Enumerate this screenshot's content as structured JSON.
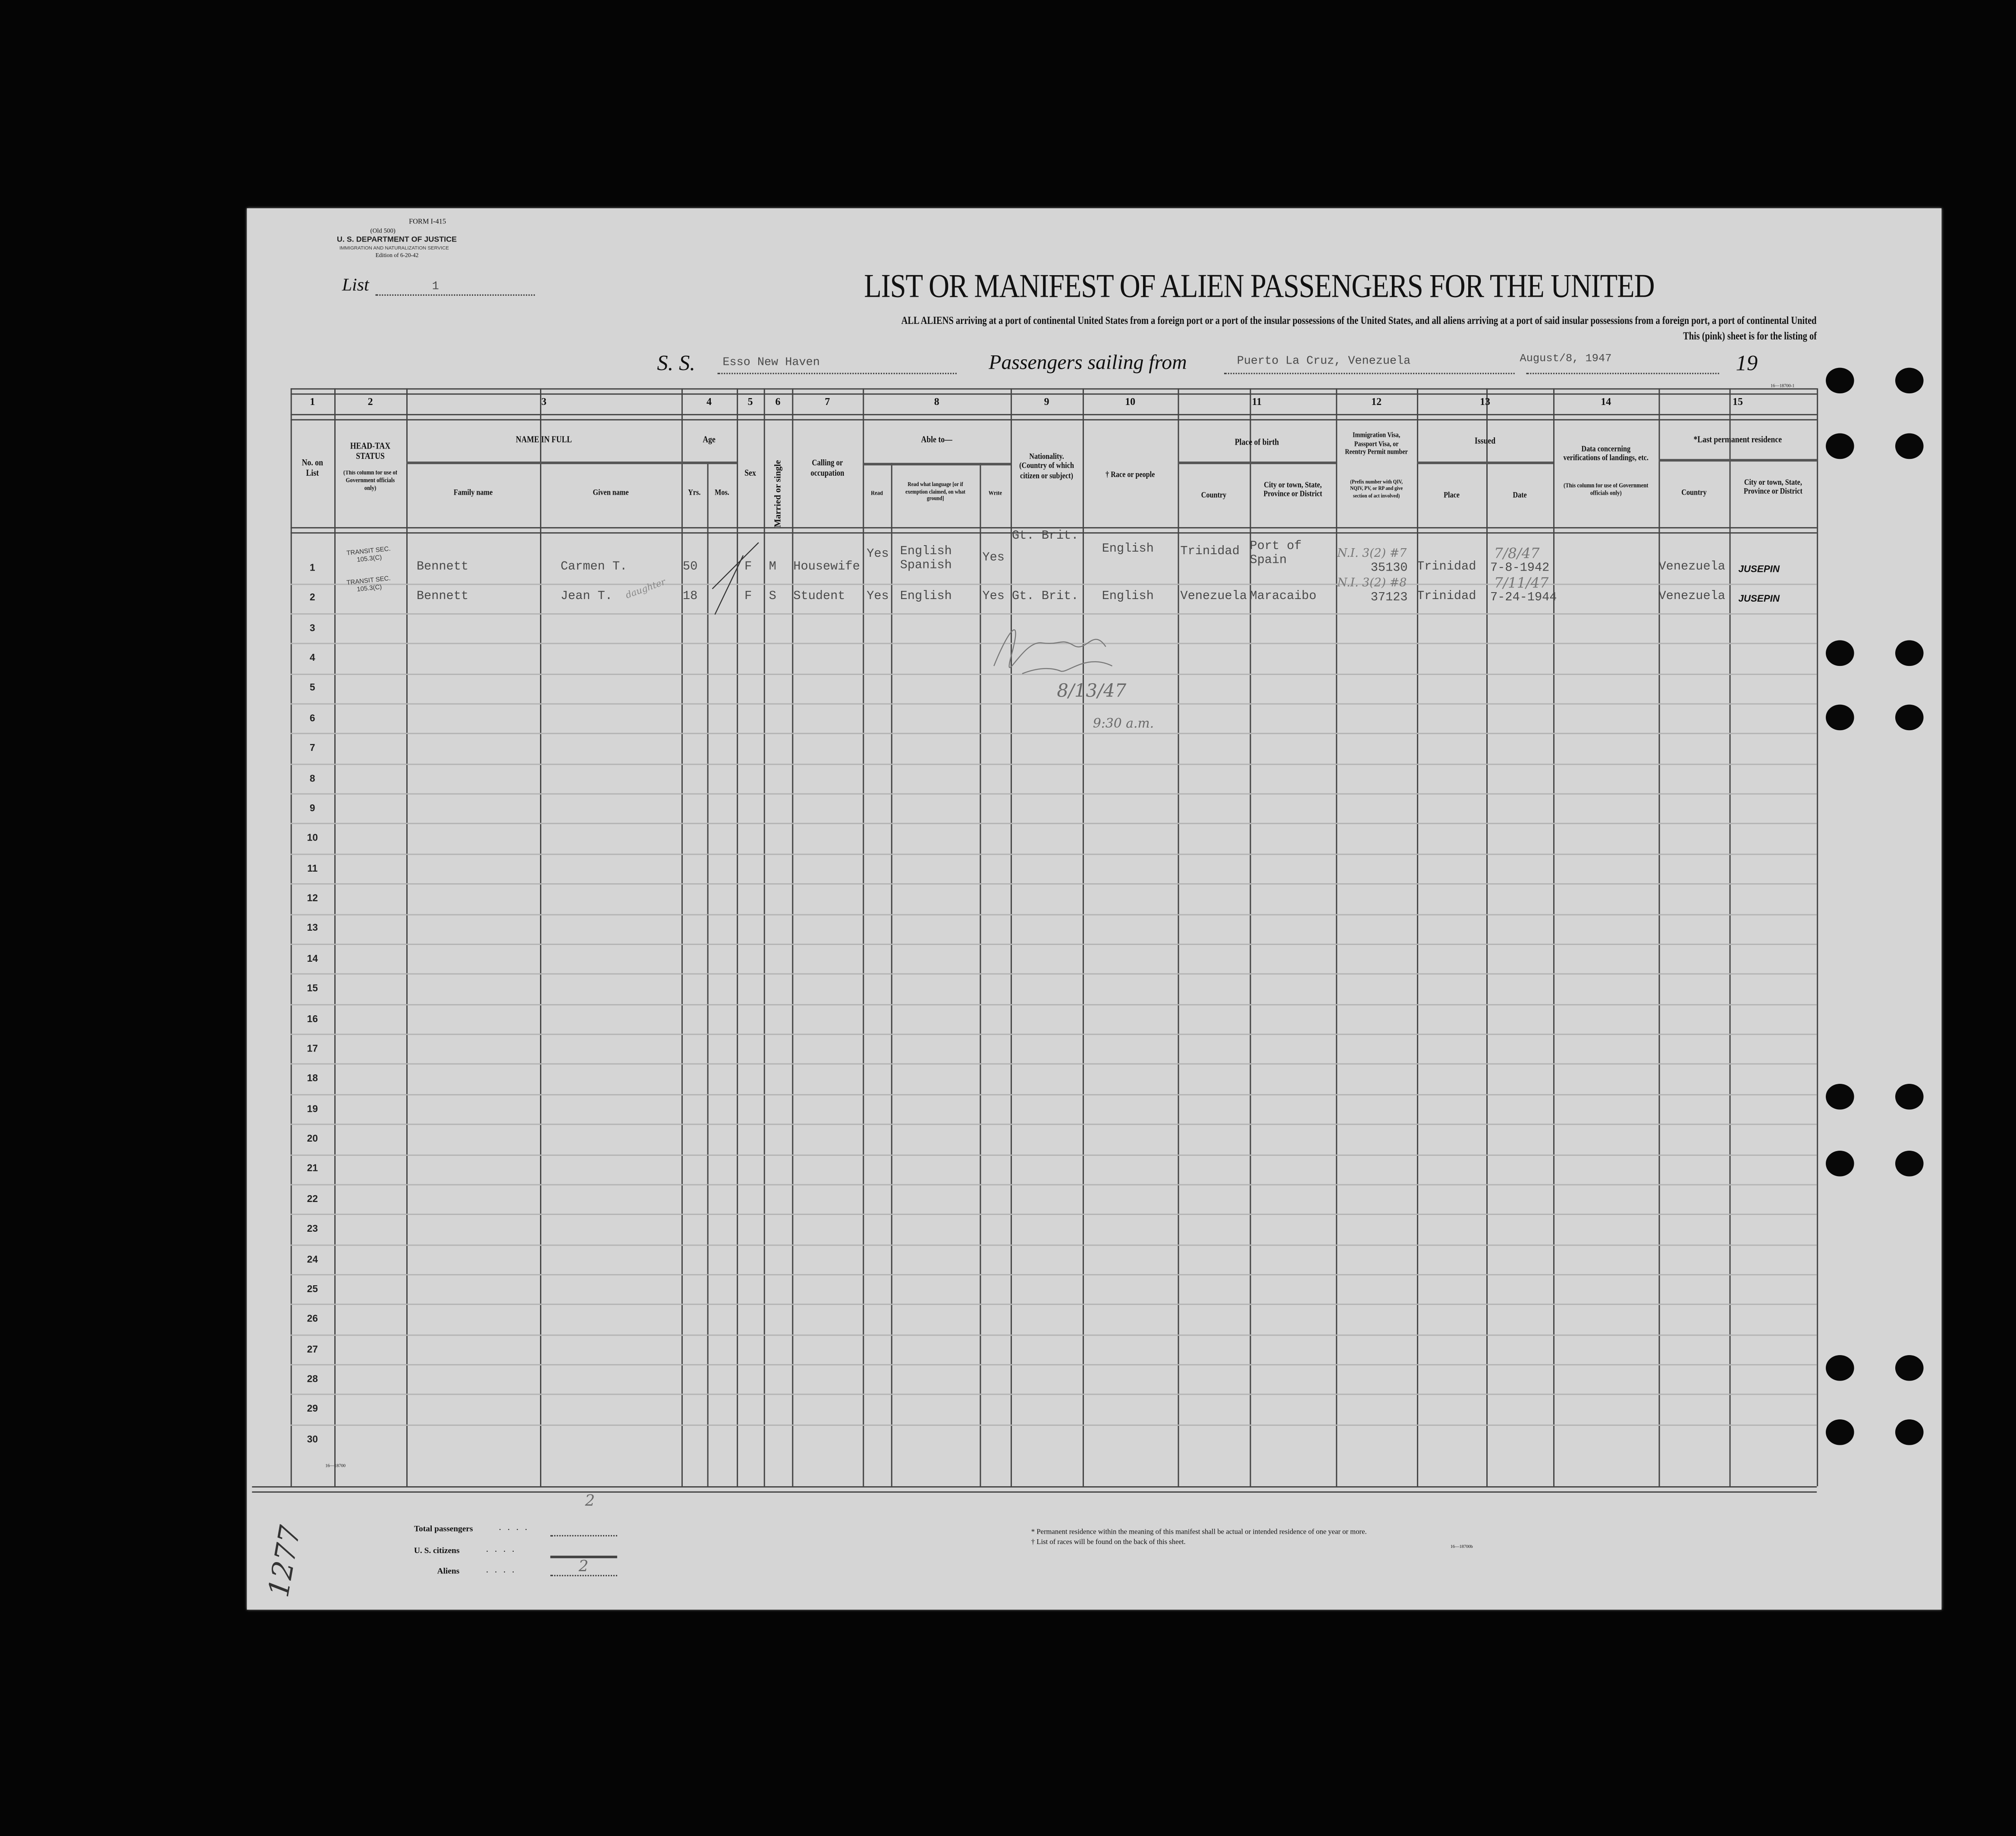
{
  "form": {
    "form_number": "FORM I-415",
    "old_number": "(Old 500)",
    "department": "U. S. DEPARTMENT OF JUSTICE",
    "service": "IMMIGRATION AND NATURALIZATION SERVICE",
    "edition": "Edition of 6-20-42",
    "list_label": "List",
    "list_value": "1",
    "title": "LIST OR MANIFEST OF ALIEN PASSENGERS FOR THE UNITED",
    "subtitle": "ALL ALIENS arriving at a port of continental United States from a foreign port or a port of the insular possessions of the United States, and all aliens arriving at a port of said insular possessions from a foreign port, a port of continental United",
    "subtitle2": "This (pink) sheet is for the listing of",
    "ss_label": "S. S.",
    "ship": "Esso New Haven",
    "sailing_label": "Passengers sailing from",
    "port": "Puerto La Cruz, Venezuela",
    "date": "August/8, 1947",
    "year_label": "19",
    "code_top": "16—18700-1",
    "code_bottom": "16—18700",
    "code_footnote": "16—18700b"
  },
  "columns": {
    "numbers": [
      "1",
      "2",
      "3",
      "4",
      "5",
      "6",
      "7",
      "8",
      "9",
      "10",
      "11",
      "12",
      "13",
      "14",
      "15"
    ],
    "no_on_list": "No. on List",
    "head_tax": "HEAD-TAX STATUS",
    "head_tax_note": "(This column for use of Government officials only)",
    "name_in_full": "NAME IN FULL",
    "family_name": "Family name",
    "given_name": "Given name",
    "age": "Age",
    "yrs": "Yrs.",
    "mos": "Mos.",
    "sex": "Sex",
    "married": "Married or single",
    "calling": "Calling or occupation",
    "able_to": "Able to—",
    "read": "Read",
    "read_what": "Read what language [or if exemption claimed, on what ground]",
    "write": "Write",
    "nationality": "Nationality. (Country of which citizen or subject)",
    "race": "† Race or people",
    "place_of_birth": "Place of birth",
    "country": "Country",
    "city": "City or town, State, Province or District",
    "visa": "Immigration Visa, Passport Visa, or Reentry Permit number",
    "visa_note": "(Prefix number with QIV, NQIV, PV, or RP and give section of act involved)",
    "issued": "Issued",
    "place": "Place",
    "date": "Date",
    "data_concerning": "Data concerning verifications of landings, etc.",
    "data_note": "(This column for use of Government officials only)",
    "last_residence": "*Last permanent residence",
    "res_country": "Country",
    "res_city": "City or town, State, Province or District"
  },
  "row_count": 30,
  "passengers": [
    {
      "no": "1",
      "head_tax": "TRANSIT SEC. 105.3(C)",
      "family": "Bennett",
      "given": "Carmen T.",
      "yrs": "50",
      "sex": "F",
      "marital": "M",
      "calling": "Housewife",
      "read": "Yes",
      "language": "English\nSpanish",
      "write": "Yes",
      "nationality": "Gt. Brit.",
      "race": "English",
      "birth_country": "Trinidad",
      "birth_city": "Port of\nSpain",
      "visa": "35130",
      "visa_note": "N.I. 3(2) #7",
      "issued_place": "Trinidad",
      "issued_date": "7-8-1942",
      "issued_note": "7/8/47",
      "res_country": "Venezuela",
      "res_city": "JUSEPIN"
    },
    {
      "no": "2",
      "head_tax": "TRANSIT SEC. 105.3(C)",
      "family": "Bennett",
      "given": "Jean T.",
      "relation": "daughter",
      "yrs": "18",
      "sex": "F",
      "marital": "S",
      "calling": "Student",
      "read": "Yes",
      "language": "English",
      "write": "Yes",
      "nationality": "Gt. Brit.",
      "race": "English",
      "birth_country": "Venezuela",
      "birth_city": "Maracaibo",
      "visa": "37123",
      "visa_note": "N.I. 3(2) #8",
      "issued_place": "Trinidad",
      "issued_date": "7-24-1944",
      "issued_note": "7/11/47",
      "res_country": "Venezuela",
      "res_city": "JUSEPIN"
    }
  ],
  "annotation": {
    "signature": "J. Murphy Insp.",
    "date": "8/13/47",
    "time": "9:30 a.m."
  },
  "margin_note": "1277",
  "totals": {
    "total_label": "Total passengers",
    "total_value": "2",
    "us_label": "U. S. citizens",
    "us_value": "",
    "aliens_label": "Aliens",
    "aliens_value": "2"
  },
  "footnotes": {
    "residence": "* Permanent residence within the meaning of this manifest shall be actual or intended residence of one year or more.",
    "races": "† List of races will be found on the back of this sheet."
  },
  "colors": {
    "paper": "#d5d5d5",
    "background": "#050505",
    "ink": "#111111",
    "typewriter": "#4a4a4a"
  }
}
